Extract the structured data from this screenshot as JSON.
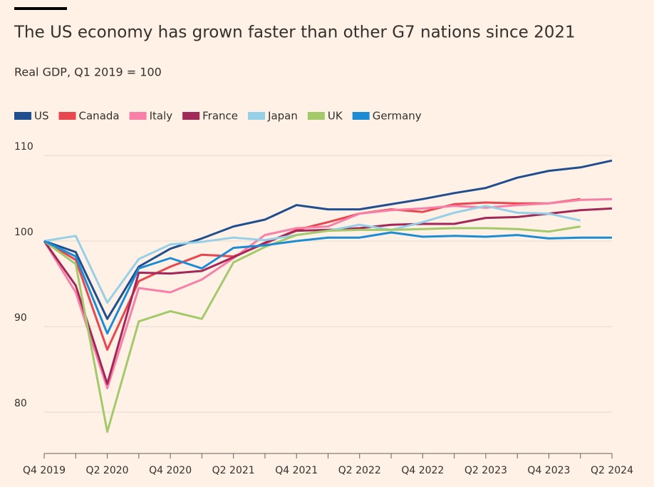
{
  "chart_data": {
    "type": "line",
    "title": "The US economy has grown faster than other G7 nations since 2021",
    "subtitle": "Real GDP, Q1 2019 = 100",
    "categories": [
      "Q4 2019",
      null,
      "Q2 2020",
      null,
      "Q4 2020",
      null,
      "Q2 2021",
      null,
      "Q4 2021",
      null,
      "Q2 2022",
      null,
      "Q4 2022",
      null,
      "Q2 2023",
      null,
      "Q4 2023",
      null,
      "Q2 2024"
    ],
    "series": [
      {
        "name": "US",
        "color": "#1f4f8f",
        "values": [
          100,
          98.7,
          90.9,
          97.0,
          99.1,
          100.3,
          101.7,
          102.5,
          104.2,
          103.7,
          103.7,
          104.3,
          104.9,
          105.6,
          106.2,
          107.4,
          108.2,
          108.6,
          109.4
        ]
      },
      {
        "name": "Canada",
        "color": "#e8474f",
        "values": [
          100,
          97.8,
          87.3,
          95.3,
          97.0,
          98.4,
          98.2,
          99.7,
          101.3,
          102.2,
          103.2,
          103.7,
          103.4,
          104.3,
          104.5,
          104.4,
          104.4,
          104.9,
          null
        ]
      },
      {
        "name": "Italy",
        "color": "#f77fa8",
        "values": [
          100,
          94.0,
          82.8,
          94.5,
          94.0,
          95.5,
          98.0,
          100.7,
          101.5,
          101.7,
          103.2,
          103.6,
          103.8,
          104.1,
          103.9,
          104.2,
          104.4,
          104.8,
          104.9
        ]
      },
      {
        "name": "France",
        "color": "#a3285a",
        "values": [
          100,
          94.8,
          83.3,
          96.3,
          96.2,
          96.5,
          98.1,
          99.8,
          101.2,
          101.3,
          101.5,
          101.9,
          102.0,
          102.0,
          102.7,
          102.8,
          103.2,
          103.6,
          103.8
        ]
      },
      {
        "name": "Japan",
        "color": "#96d0e8",
        "values": [
          100,
          100.6,
          92.8,
          97.9,
          99.6,
          99.9,
          100.4,
          100.1,
          100.7,
          101.2,
          101.9,
          101.3,
          102.2,
          103.3,
          104.1,
          103.3,
          103.2,
          102.4,
          null
        ]
      },
      {
        "name": "UK",
        "color": "#a2c96a",
        "values": [
          100,
          97.3,
          77.7,
          90.6,
          91.8,
          90.9,
          97.5,
          99.3,
          100.7,
          101.2,
          101.3,
          101.3,
          101.4,
          101.5,
          101.5,
          101.4,
          101.1,
          101.7,
          null
        ]
      },
      {
        "name": "Germany",
        "color": "#1c8dd4",
        "values": [
          100,
          98.2,
          89.2,
          96.8,
          98.0,
          96.8,
          99.2,
          99.5,
          100.0,
          100.4,
          100.4,
          101.0,
          100.5,
          100.6,
          100.5,
          100.7,
          100.3,
          100.4,
          100.4
        ]
      }
    ],
    "ylim": [
      75,
      111
    ],
    "yticks": [
      80,
      90,
      100,
      110
    ],
    "grid": true
  }
}
